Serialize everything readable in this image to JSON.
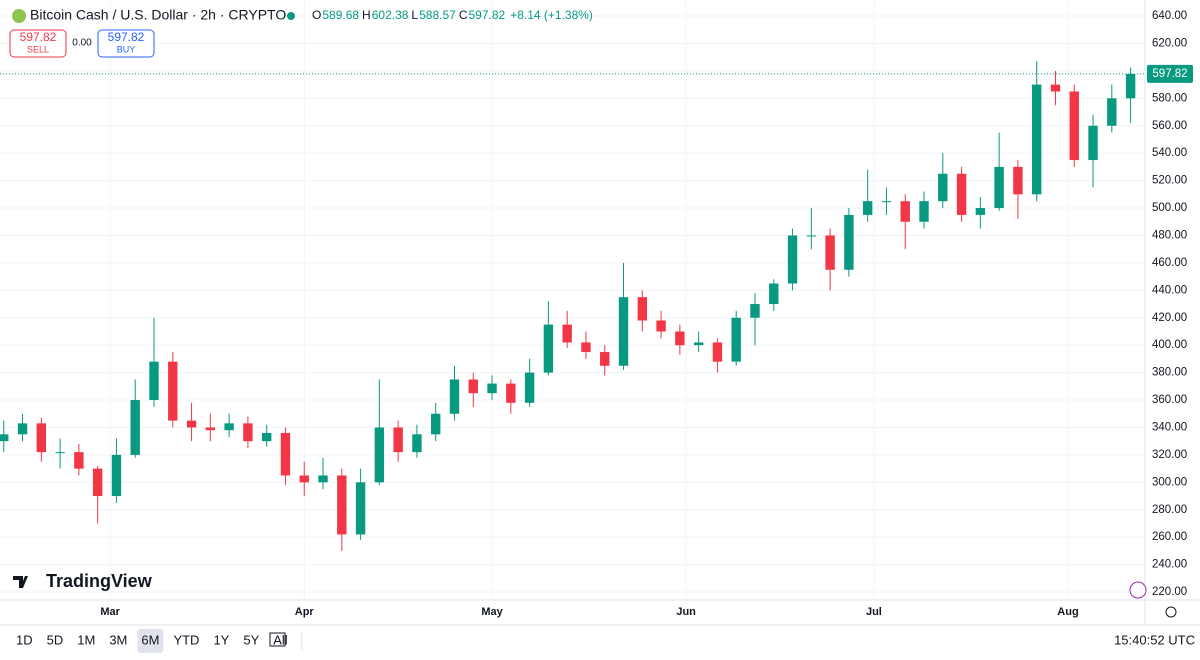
{
  "header": {
    "symbol": "Bitcoin Cash / U.S. Dollar · 2h · CRYPTO",
    "ohlc": [
      {
        "label": "O",
        "value": "589.68"
      },
      {
        "label": "H",
        "value": "602.38"
      },
      {
        "label": "L",
        "value": "588.57"
      },
      {
        "label": "C",
        "value": "597.82"
      }
    ],
    "change": "+8.14 (+1.38%)",
    "sell_price": "597.82",
    "sell": "SELL",
    "spread": "0.00",
    "buy_price": "597.82",
    "buy": "BUY"
  },
  "brand": "TradingView",
  "toolbar": {
    "ranges": [
      "1D",
      "5D",
      "1M",
      "3M",
      "6M",
      "YTD",
      "1Y",
      "5Y",
      "All"
    ],
    "selected": "6M",
    "clock": "15:40:52 UTC"
  },
  "chart_data": {
    "type": "candlestick",
    "up_color": "#089981",
    "down_color": "#f23645",
    "grid": true,
    "x": [
      0,
      3,
      6,
      9,
      12,
      15,
      18,
      21,
      24,
      27,
      30,
      33,
      36,
      39,
      42,
      45,
      48,
      51,
      54,
      57,
      60,
      63,
      66,
      69,
      72,
      75,
      78,
      81,
      84,
      87,
      90,
      93,
      96,
      99,
      102,
      105,
      108,
      111,
      114,
      117,
      120,
      123,
      126,
      129,
      132,
      135,
      138,
      141,
      144,
      147,
      150,
      153,
      156,
      159,
      162,
      165,
      168,
      171,
      174,
      177,
      180
    ],
    "open": [
      330,
      335,
      343,
      322,
      322,
      310,
      290,
      320,
      360,
      388,
      345,
      340,
      338,
      343,
      330,
      336,
      305,
      300,
      305,
      262,
      300,
      340,
      322,
      335,
      350,
      375,
      365,
      372,
      358,
      380,
      415,
      402,
      395,
      385,
      435,
      418,
      410,
      400,
      402,
      388,
      420,
      430,
      445,
      480,
      480,
      455,
      495,
      505,
      505,
      490,
      505,
      525,
      495,
      500,
      530,
      510,
      590,
      585,
      535,
      560,
      580
    ],
    "high": [
      345,
      350,
      347,
      332,
      328,
      312,
      332,
      375,
      420,
      395,
      358,
      350,
      350,
      348,
      342,
      340,
      315,
      318,
      310,
      310,
      375,
      345,
      342,
      358,
      385,
      380,
      378,
      375,
      390,
      432,
      425,
      410,
      400,
      460,
      440,
      425,
      415,
      410,
      405,
      425,
      438,
      448,
      485,
      500,
      485,
      500,
      528,
      515,
      510,
      512,
      540,
      530,
      508,
      555,
      535,
      607,
      600,
      590,
      568,
      590,
      602.38
    ],
    "low": [
      322,
      330,
      315,
      310,
      305,
      270,
      285,
      318,
      355,
      340,
      330,
      330,
      333,
      325,
      326,
      298,
      290,
      295,
      250,
      258,
      298,
      315,
      318,
      330,
      345,
      355,
      360,
      350,
      355,
      378,
      398,
      390,
      378,
      382,
      410,
      405,
      393,
      395,
      380,
      385,
      400,
      425,
      440,
      470,
      440,
      450,
      490,
      495,
      470,
      485,
      500,
      490,
      485,
      498,
      492,
      505,
      575,
      530,
      515,
      555,
      562
    ],
    "close": [
      335,
      343,
      322,
      322,
      310,
      290,
      320,
      360,
      388,
      345,
      340,
      338,
      343,
      330,
      336,
      305,
      300,
      305,
      262,
      300,
      340,
      322,
      335,
      350,
      375,
      365,
      372,
      358,
      380,
      415,
      402,
      395,
      385,
      435,
      418,
      410,
      400,
      402,
      388,
      420,
      430,
      445,
      480,
      480,
      455,
      495,
      505,
      505,
      490,
      505,
      525,
      495,
      500,
      530,
      510,
      590,
      585,
      535,
      560,
      580,
      597.82
    ],
    "xlim": [
      -0.6,
      182.3
    ],
    "xticks": [
      {
        "value": 17,
        "label": "Mar"
      },
      {
        "value": 48,
        "label": "Apr"
      },
      {
        "value": 78,
        "label": "May"
      },
      {
        "value": 109,
        "label": "Jun"
      },
      {
        "value": 139,
        "label": "Jul"
      },
      {
        "value": 170,
        "label": "Aug"
      }
    ],
    "ylim": [
      214.2,
      651.7
    ],
    "yticks": [
      {
        "value": 220,
        "label": "220.00"
      },
      {
        "value": 240,
        "label": "240.00"
      },
      {
        "value": 260,
        "label": "260.00"
      },
      {
        "value": 280,
        "label": "280.00"
      },
      {
        "value": 300,
        "label": "300.00"
      },
      {
        "value": 320,
        "label": "320.00"
      },
      {
        "value": 340,
        "label": "340.00"
      },
      {
        "value": 360,
        "label": "360.00"
      },
      {
        "value": 380,
        "label": "380.00"
      },
      {
        "value": 400,
        "label": "400.00"
      },
      {
        "value": 420,
        "label": "420.00"
      },
      {
        "value": 440,
        "label": "440.00"
      },
      {
        "value": 460,
        "label": "460.00"
      },
      {
        "value": 480,
        "label": "480.00"
      },
      {
        "value": 500,
        "label": "500.00"
      },
      {
        "value": 520,
        "label": "520.00"
      },
      {
        "value": 540,
        "label": "540.00"
      },
      {
        "value": 560,
        "label": "560.00"
      },
      {
        "value": 580,
        "label": "580.00"
      },
      {
        "value": 600,
        "label": "600.00"
      },
      {
        "value": 620,
        "label": "620.00"
      },
      {
        "value": 640,
        "label": "640.00"
      }
    ]
  }
}
